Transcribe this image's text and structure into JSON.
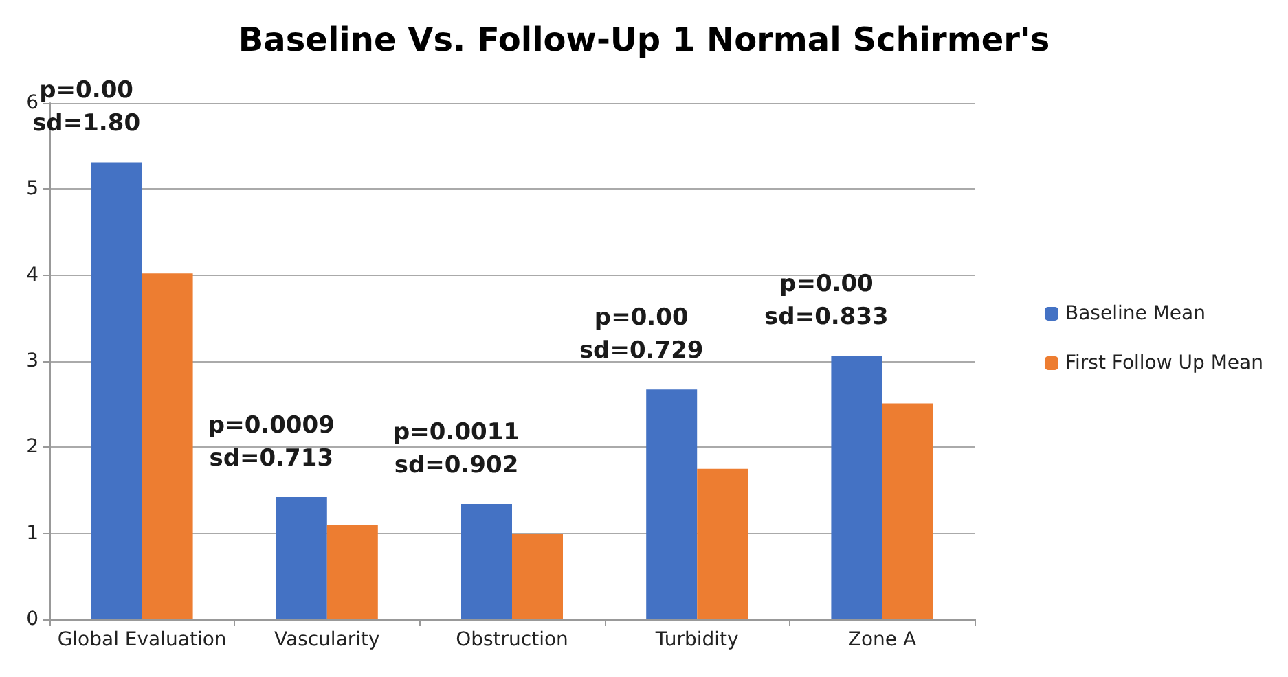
{
  "chart_data": {
    "type": "bar",
    "title": "Baseline Vs. Follow-Up 1 Normal Schirmer's",
    "categories": [
      "Global Evaluation",
      "Vascularity",
      "Obstruction",
      "Turbidity",
      "Zone A"
    ],
    "series": [
      {
        "name": "Baseline Mean",
        "color": "#4472c4",
        "values": [
          5.31,
          1.42,
          1.34,
          2.67,
          3.06
        ]
      },
      {
        "name": "First Follow Up Mean",
        "color": "#ed7d31",
        "values": [
          4.02,
          1.1,
          0.99,
          1.75,
          2.51
        ]
      }
    ],
    "ylim": [
      0,
      6
    ],
    "yticks": [
      0,
      1,
      2,
      3,
      4,
      5,
      6
    ],
    "grid": "y",
    "legend": "right",
    "annotations": [
      "p=0.00\nsd=1.80",
      "p=0.0009\nsd=0.713",
      "p=0.0011\nsd=0.902",
      "p=0.00\nsd=0.729",
      "p=0.00\nsd=0.833"
    ]
  }
}
